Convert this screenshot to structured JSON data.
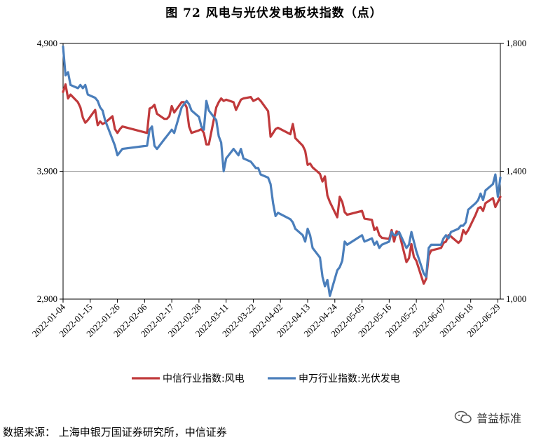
{
  "title": "图 72  风电与光伏发电板块指数（点）",
  "source": "数据来源：   上海申银万国证券研究所，中信证券",
  "watermark": "普益标准",
  "colors": {
    "wind": "#c0393b",
    "solar": "#4a7ebb"
  },
  "chart_data": {
    "type": "line",
    "title": "图 72  风电与光伏发电板块指数（点）",
    "x_ticks": [
      "2022-01-04",
      "2022-01-15",
      "2022-01-26",
      "2022-02-06",
      "2022-02-17",
      "2022-02-28",
      "2022-03-11",
      "2022-03-22",
      "2022-04-02",
      "2022-04-13",
      "2022-04-24",
      "2022-05-05",
      "2022-05-16",
      "2022-05-27",
      "2022-06-07",
      "2022-06-18",
      "2022-06-29"
    ],
    "x_range": [
      "2022-01-04",
      "2022-06-30"
    ],
    "left_axis": {
      "ticks": [
        "2,900",
        "3,900",
        "4,900"
      ],
      "ylim": [
        2900,
        4900
      ]
    },
    "right_axis": {
      "ticks": [
        "1,000",
        "1,400",
        "1,800"
      ],
      "ylim": [
        1000,
        1800
      ]
    },
    "grid": "horizontal",
    "legend_position": "bottom",
    "series": [
      {
        "name": "中信行业指数:风电",
        "axis": "left",
        "color": "#c0393b",
        "points": [
          [
            "2022-01-04",
            4520
          ],
          [
            "2022-01-05",
            4580
          ],
          [
            "2022-01-06",
            4470
          ],
          [
            "2022-01-07",
            4500
          ],
          [
            "2022-01-10",
            4440
          ],
          [
            "2022-01-11",
            4400
          ],
          [
            "2022-01-12",
            4320
          ],
          [
            "2022-01-13",
            4280
          ],
          [
            "2022-01-14",
            4300
          ],
          [
            "2022-01-17",
            4380
          ],
          [
            "2022-01-18",
            4260
          ],
          [
            "2022-01-19",
            4290
          ],
          [
            "2022-01-20",
            4270
          ],
          [
            "2022-01-21",
            4280
          ],
          [
            "2022-01-24",
            4330
          ],
          [
            "2022-01-25",
            4230
          ],
          [
            "2022-01-26",
            4200
          ],
          [
            "2022-01-27",
            4230
          ],
          [
            "2022-01-28",
            4250
          ],
          [
            "2022-02-07",
            4200
          ],
          [
            "2022-02-08",
            4390
          ],
          [
            "2022-02-09",
            4400
          ],
          [
            "2022-02-10",
            4420
          ],
          [
            "2022-02-11",
            4350
          ],
          [
            "2022-02-14",
            4310
          ],
          [
            "2022-02-15",
            4310
          ],
          [
            "2022-02-16",
            4330
          ],
          [
            "2022-02-17",
            4410
          ],
          [
            "2022-02-18",
            4360
          ],
          [
            "2022-02-21",
            4440
          ],
          [
            "2022-02-22",
            4440
          ],
          [
            "2022-02-23",
            4400
          ],
          [
            "2022-02-24",
            4250
          ],
          [
            "2022-02-25",
            4200
          ],
          [
            "2022-02-28",
            4220
          ],
          [
            "2022-03-01",
            4230
          ],
          [
            "2022-03-02",
            4200
          ],
          [
            "2022-03-03",
            4110
          ],
          [
            "2022-03-04",
            4110
          ],
          [
            "2022-03-07",
            4400
          ],
          [
            "2022-03-08",
            4440
          ],
          [
            "2022-03-09",
            4470
          ],
          [
            "2022-03-10",
            4450
          ],
          [
            "2022-03-11",
            4460
          ],
          [
            "2022-03-14",
            4440
          ],
          [
            "2022-03-15",
            4380
          ],
          [
            "2022-03-16",
            4420
          ],
          [
            "2022-03-17",
            4460
          ],
          [
            "2022-03-18",
            4470
          ],
          [
            "2022-03-21",
            4480
          ],
          [
            "2022-03-22",
            4450
          ],
          [
            "2022-03-23",
            4460
          ],
          [
            "2022-03-24",
            4470
          ],
          [
            "2022-03-25",
            4450
          ],
          [
            "2022-03-28",
            4370
          ],
          [
            "2022-03-29",
            4170
          ],
          [
            "2022-03-30",
            4200
          ],
          [
            "2022-03-31",
            4230
          ],
          [
            "2022-04-01",
            4240
          ],
          [
            "2022-04-06",
            4190
          ],
          [
            "2022-04-07",
            4270
          ],
          [
            "2022-04-08",
            4160
          ],
          [
            "2022-04-11",
            4100
          ],
          [
            "2022-04-12",
            4060
          ],
          [
            "2022-04-13",
            3950
          ],
          [
            "2022-04-14",
            3960
          ],
          [
            "2022-04-15",
            3930
          ],
          [
            "2022-04-18",
            3880
          ],
          [
            "2022-04-19",
            3820
          ],
          [
            "2022-04-20",
            3860
          ],
          [
            "2022-04-21",
            3710
          ],
          [
            "2022-04-22",
            3660
          ],
          [
            "2022-04-25",
            3540
          ],
          [
            "2022-04-26",
            3700
          ],
          [
            "2022-04-27",
            3660
          ],
          [
            "2022-04-28",
            3580
          ],
          [
            "2022-04-29",
            3560
          ],
          [
            "2022-05-05",
            3590
          ],
          [
            "2022-05-06",
            3530
          ],
          [
            "2022-05-09",
            3520
          ],
          [
            "2022-05-10",
            3440
          ],
          [
            "2022-05-11",
            3460
          ],
          [
            "2022-05-12",
            3400
          ],
          [
            "2022-05-13",
            3380
          ],
          [
            "2022-05-16",
            3370
          ],
          [
            "2022-05-17",
            3440
          ],
          [
            "2022-05-18",
            3350
          ],
          [
            "2022-05-19",
            3430
          ],
          [
            "2022-05-20",
            3420
          ],
          [
            "2022-05-23",
            3190
          ],
          [
            "2022-05-24",
            3220
          ],
          [
            "2022-05-25",
            3330
          ],
          [
            "2022-05-26",
            3230
          ],
          [
            "2022-05-27",
            3200
          ],
          [
            "2022-05-30",
            3020
          ],
          [
            "2022-05-31",
            3060
          ],
          [
            "2022-06-01",
            3240
          ],
          [
            "2022-06-02",
            3280
          ],
          [
            "2022-06-06",
            3300
          ],
          [
            "2022-06-07",
            3340
          ],
          [
            "2022-06-08",
            3350
          ],
          [
            "2022-06-09",
            3400
          ],
          [
            "2022-06-10",
            3390
          ],
          [
            "2022-06-13",
            3340
          ],
          [
            "2022-06-14",
            3360
          ],
          [
            "2022-06-15",
            3440
          ],
          [
            "2022-06-16",
            3410
          ],
          [
            "2022-06-17",
            3440
          ],
          [
            "2022-06-20",
            3560
          ],
          [
            "2022-06-21",
            3610
          ],
          [
            "2022-06-22",
            3620
          ],
          [
            "2022-06-23",
            3590
          ],
          [
            "2022-06-24",
            3650
          ],
          [
            "2022-06-27",
            3690
          ],
          [
            "2022-06-28",
            3620
          ],
          [
            "2022-06-29",
            3660
          ],
          [
            "2022-06-30",
            3700
          ]
        ]
      },
      {
        "name": "申万行业指数:光伏发电",
        "axis": "right",
        "color": "#4a7ebb",
        "points": [
          [
            "2022-01-04",
            1790
          ],
          [
            "2022-01-05",
            1700
          ],
          [
            "2022-01-06",
            1710
          ],
          [
            "2022-01-07",
            1670
          ],
          [
            "2022-01-10",
            1660
          ],
          [
            "2022-01-11",
            1670
          ],
          [
            "2022-01-12",
            1660
          ],
          [
            "2022-01-13",
            1670
          ],
          [
            "2022-01-14",
            1640
          ],
          [
            "2022-01-17",
            1630
          ],
          [
            "2022-01-18",
            1620
          ],
          [
            "2022-01-19",
            1600
          ],
          [
            "2022-01-20",
            1590
          ],
          [
            "2022-01-21",
            1560
          ],
          [
            "2022-01-24",
            1500
          ],
          [
            "2022-01-25",
            1480
          ],
          [
            "2022-01-26",
            1450
          ],
          [
            "2022-01-27",
            1460
          ],
          [
            "2022-01-28",
            1470
          ],
          [
            "2022-02-07",
            1480
          ],
          [
            "2022-02-08",
            1530
          ],
          [
            "2022-02-09",
            1540
          ],
          [
            "2022-02-10",
            1480
          ],
          [
            "2022-02-11",
            1470
          ],
          [
            "2022-02-14",
            1500
          ],
          [
            "2022-02-15",
            1510
          ],
          [
            "2022-02-16",
            1520
          ],
          [
            "2022-02-17",
            1530
          ],
          [
            "2022-02-18",
            1520
          ],
          [
            "2022-02-21",
            1600
          ],
          [
            "2022-02-22",
            1610
          ],
          [
            "2022-02-23",
            1620
          ],
          [
            "2022-02-24",
            1610
          ],
          [
            "2022-02-25",
            1590
          ],
          [
            "2022-02-28",
            1570
          ],
          [
            "2022-03-01",
            1540
          ],
          [
            "2022-03-02",
            1530
          ],
          [
            "2022-03-03",
            1620
          ],
          [
            "2022-03-04",
            1590
          ],
          [
            "2022-03-07",
            1560
          ],
          [
            "2022-03-08",
            1510
          ],
          [
            "2022-03-09",
            1490
          ],
          [
            "2022-03-10",
            1400
          ],
          [
            "2022-03-11",
            1440
          ],
          [
            "2022-03-14",
            1470
          ],
          [
            "2022-03-15",
            1460
          ],
          [
            "2022-03-16",
            1450
          ],
          [
            "2022-03-17",
            1470
          ],
          [
            "2022-03-18",
            1440
          ],
          [
            "2022-03-21",
            1430
          ],
          [
            "2022-03-22",
            1420
          ],
          [
            "2022-03-23",
            1410
          ],
          [
            "2022-03-24",
            1410
          ],
          [
            "2022-03-25",
            1390
          ],
          [
            "2022-03-28",
            1380
          ],
          [
            "2022-03-29",
            1360
          ],
          [
            "2022-03-30",
            1300
          ],
          [
            "2022-03-31",
            1260
          ],
          [
            "2022-04-01",
            1270
          ],
          [
            "2022-04-06",
            1250
          ],
          [
            "2022-04-07",
            1240
          ],
          [
            "2022-04-08",
            1220
          ],
          [
            "2022-04-11",
            1200
          ],
          [
            "2022-04-12",
            1180
          ],
          [
            "2022-04-13",
            1220
          ],
          [
            "2022-04-14",
            1200
          ],
          [
            "2022-04-15",
            1160
          ],
          [
            "2022-04-18",
            1130
          ],
          [
            "2022-04-19",
            1070
          ],
          [
            "2022-04-20",
            1040
          ],
          [
            "2022-04-21",
            1060
          ],
          [
            "2022-04-22",
            1010
          ],
          [
            "2022-04-25",
            1090
          ],
          [
            "2022-04-26",
            1100
          ],
          [
            "2022-04-27",
            1120
          ],
          [
            "2022-04-28",
            1180
          ],
          [
            "2022-04-29",
            1170
          ],
          [
            "2022-05-05",
            1200
          ],
          [
            "2022-05-06",
            1180
          ],
          [
            "2022-05-09",
            1190
          ],
          [
            "2022-05-10",
            1170
          ],
          [
            "2022-05-11",
            1180
          ],
          [
            "2022-05-12",
            1160
          ],
          [
            "2022-05-13",
            1170
          ],
          [
            "2022-05-16",
            1180
          ],
          [
            "2022-05-17",
            1210
          ],
          [
            "2022-05-18",
            1200
          ],
          [
            "2022-05-19",
            1200
          ],
          [
            "2022-05-20",
            1210
          ],
          [
            "2022-05-23",
            1160
          ],
          [
            "2022-05-24",
            1170
          ],
          [
            "2022-05-25",
            1210
          ],
          [
            "2022-05-26",
            1180
          ],
          [
            "2022-05-27",
            1150
          ],
          [
            "2022-05-30",
            1080
          ],
          [
            "2022-05-31",
            1070
          ],
          [
            "2022-06-01",
            1160
          ],
          [
            "2022-06-02",
            1170
          ],
          [
            "2022-06-06",
            1170
          ],
          [
            "2022-06-07",
            1190
          ],
          [
            "2022-06-08",
            1200
          ],
          [
            "2022-06-09",
            1190
          ],
          [
            "2022-06-10",
            1210
          ],
          [
            "2022-06-13",
            1220
          ],
          [
            "2022-06-14",
            1230
          ],
          [
            "2022-06-15",
            1230
          ],
          [
            "2022-06-16",
            1240
          ],
          [
            "2022-06-17",
            1280
          ],
          [
            "2022-06-20",
            1300
          ],
          [
            "2022-06-21",
            1310
          ],
          [
            "2022-06-22",
            1330
          ],
          [
            "2022-06-23",
            1310
          ],
          [
            "2022-06-24",
            1340
          ],
          [
            "2022-06-27",
            1360
          ],
          [
            "2022-06-28",
            1390
          ],
          [
            "2022-06-29",
            1320
          ],
          [
            "2022-06-30",
            1380
          ]
        ]
      }
    ]
  }
}
